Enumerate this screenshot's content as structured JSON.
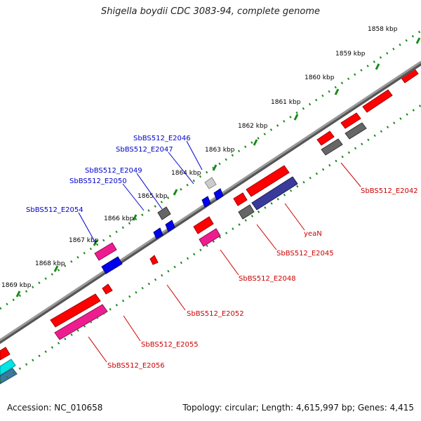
{
  "title": "Shigella boydii CDC 3083-94, complete genome",
  "footer": {
    "accession": "Accession: NC_010658",
    "summary": "Topology: circular; Length: 4,615,997 bp; Genes: 4,415"
  },
  "colors": {
    "backbone": "#7f7f7f",
    "tick_track": "#1a8a1a",
    "label_forward": "#0000cc",
    "label_reverse": "#cc0000",
    "feature_red": "#ff0000",
    "feature_blue": "#0000ee",
    "feature_magenta": "#ee1d8f",
    "feature_gray": "#666666",
    "feature_lightgray": "#cccccc",
    "feature_navy": "#3a3a9a",
    "feature_cyan": "#00e5e5"
  },
  "scale_labels": [
    "1858 kbp",
    "1859 kbp",
    "1860 kbp",
    "1861 kbp",
    "1862 kbp",
    "1863 kbp",
    "1864 kbp",
    "1865 kbp",
    "1866 kbp",
    "1867 kbp",
    "1868 kbp",
    "1869 kbp"
  ],
  "forward_labels": [
    "SbBS512_E2046",
    "SbBS512_E2047",
    "SbBS512_E2049",
    "SbBS512_E2050",
    "SbBS512_E2054"
  ],
  "reverse_labels": [
    "SbBS512_E2042",
    "yeaN",
    "SbBS512_E2045",
    "SbBS512_E2048",
    "SbBS512_E2052",
    "SbBS512_E2055",
    "SbBS512_E2056"
  ]
}
